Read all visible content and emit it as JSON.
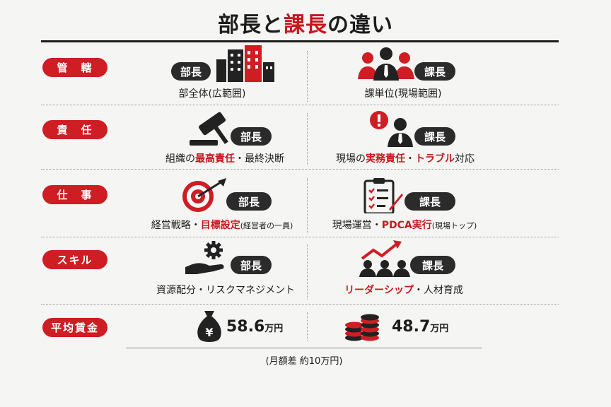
{
  "title": {
    "part1": "部長と",
    "part2": "課長",
    "part3": "の違い"
  },
  "labels": {
    "bucho": "部長",
    "kacho": "課長"
  },
  "rows": [
    {
      "category": "管　轄",
      "bucho": {
        "parts": [
          {
            "t": "部全体(広範囲)",
            "s": ""
          }
        ]
      },
      "kacho": {
        "parts": [
          {
            "t": "課単位(現場範囲)",
            "s": ""
          }
        ]
      }
    },
    {
      "category": "責　任",
      "bucho": {
        "parts": [
          {
            "t": "組織の",
            "s": ""
          },
          {
            "t": "最高責任",
            "s": "red"
          },
          {
            "t": "・最終決断",
            "s": ""
          }
        ]
      },
      "kacho": {
        "parts": [
          {
            "t": "現場の",
            "s": ""
          },
          {
            "t": "実務責任",
            "s": "red"
          },
          {
            "t": "・",
            "s": ""
          },
          {
            "t": "トラブル",
            "s": "red"
          },
          {
            "t": "対応",
            "s": ""
          }
        ]
      }
    },
    {
      "category": "仕　事",
      "bucho": {
        "parts": [
          {
            "t": "経営戦略・",
            "s": ""
          },
          {
            "t": "目標設定",
            "s": "red"
          },
          {
            "t": "(経営者の一員)",
            "s": "sm"
          }
        ]
      },
      "kacho": {
        "parts": [
          {
            "t": "現場運営・",
            "s": ""
          },
          {
            "t": "PDCA実行",
            "s": "red"
          },
          {
            "t": "(現場トップ)",
            "s": "sm"
          }
        ]
      }
    },
    {
      "category": "スキル",
      "bucho": {
        "parts": [
          {
            "t": "資源配分・リスクマネジメント",
            "s": ""
          }
        ]
      },
      "kacho": {
        "parts": [
          {
            "t": "リーダーシップ",
            "s": "red"
          },
          {
            "t": "・人材育成",
            "s": ""
          }
        ]
      }
    }
  ],
  "salary": {
    "category": "平均賃金",
    "bucho": {
      "amount": "58.6",
      "unit": "万円"
    },
    "kacho": {
      "amount": "48.7",
      "unit": "万円"
    },
    "note": "(月額差 約10万円)"
  },
  "icons": {
    "r0b": "city-buildings-icon",
    "r0k": "team-people-icon",
    "r1b": "gavel-icon",
    "r1k": "alert-person-icon",
    "r2b": "target-dart-icon",
    "r2k": "checklist-clipboard-icon",
    "r3b": "gear-hand-icon",
    "r3k": "growth-team-icon",
    "sb": "money-bag-yen-icon",
    "sk": "coin-stack-icon"
  },
  "colors": {
    "accent": "#cf1d24",
    "dark": "#2b2b2b",
    "background": "#f5f5f3"
  }
}
